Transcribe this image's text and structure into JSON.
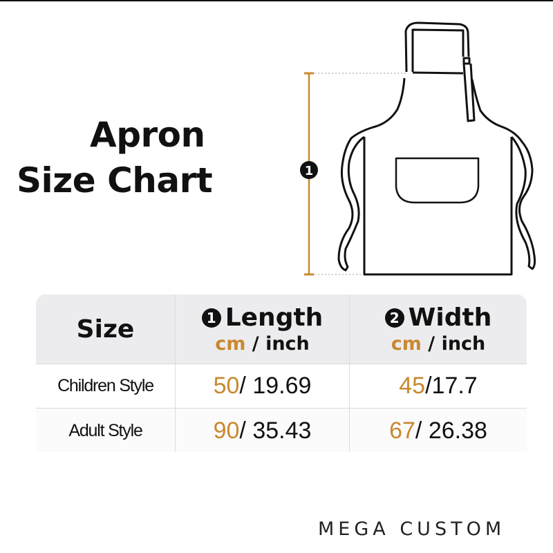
{
  "title": {
    "line1": "Apron",
    "line2": "Size Chart"
  },
  "diagram": {
    "marker": "1",
    "accent_color": "#c8892f"
  },
  "table": {
    "headers": {
      "size": "Size",
      "length": {
        "num": "1",
        "label": "Length",
        "unit_cm": "cm",
        "sep": "/",
        "unit_inch": "inch"
      },
      "width": {
        "num": "2",
        "label": "Width",
        "unit_cm": "cm",
        "sep": "/",
        "unit_inch": "inch"
      }
    },
    "rows": [
      {
        "style": "Children Style",
        "length_cm": "50",
        "length_inch": "/ 19.69",
        "width_cm": "45",
        "width_inch": "/17.7"
      },
      {
        "style": "Adult Style",
        "length_cm": "90",
        "length_inch": "/ 35.43",
        "width_cm": "67",
        "width_inch": "/ 26.38"
      }
    ]
  },
  "brand": "MEGA CUSTOM"
}
